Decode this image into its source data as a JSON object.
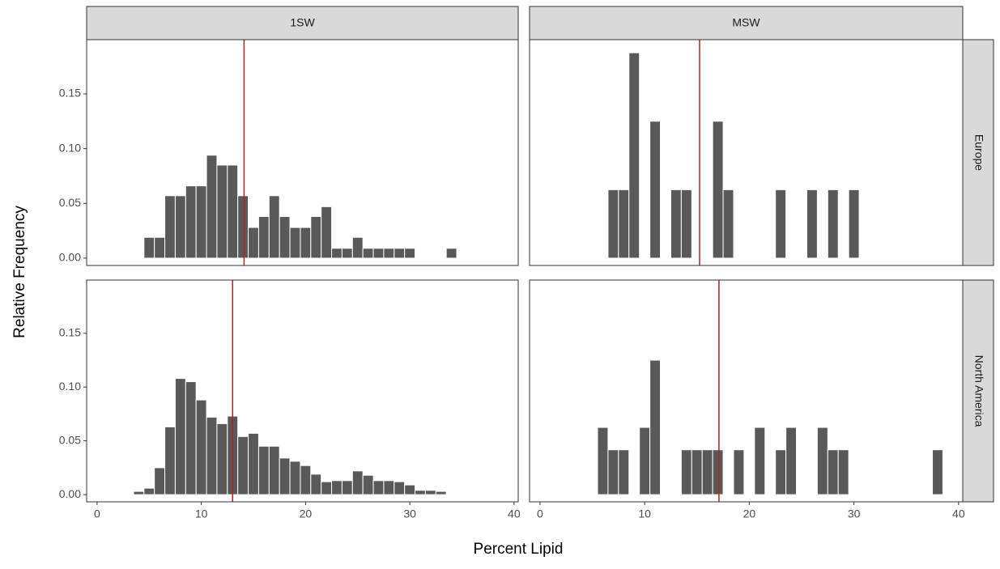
{
  "chart_data": {
    "type": "histogram",
    "x_label": "Percent Lipid",
    "y_label": "Relative Frequency",
    "columns": [
      "1SW",
      "MSW"
    ],
    "xlim": [
      -1,
      40.4
    ],
    "xticks": [
      0,
      10,
      20,
      30,
      40
    ],
    "ylim": [
      -0.0067,
      0.1995
    ],
    "yticks": [
      {
        "value": 0,
        "label": "0.00"
      },
      {
        "value": 0.05,
        "label": "0.05"
      },
      {
        "value": 0.1,
        "label": "0.10"
      },
      {
        "value": 0.15,
        "label": "0.15"
      }
    ],
    "bar_color": "#595959",
    "vline_color": "#b22222",
    "rows": [
      {
        "name": "Europe",
        "panels": [
          {
            "bins": [
              4.5,
              5.5,
              6.5,
              7.5,
              8.5,
              9.5,
              10.5,
              11.5,
              12.5,
              13.5,
              14.5,
              15.5,
              16.5,
              17.5,
              18.5,
              19.5,
              20.5,
              21.5,
              22.5,
              23.5,
              24.5,
              25.5,
              26.5,
              27.5,
              28.5,
              29.5,
              30.5,
              31.5,
              32.5,
              33.5,
              34.5
            ],
            "values": [
              0.019,
              0.019,
              0.057,
              0.057,
              0.066,
              0.066,
              0.094,
              0.085,
              0.085,
              0.057,
              0.028,
              0.038,
              0.057,
              0.038,
              0.028,
              0.028,
              0.038,
              0.047,
              0.009,
              0.009,
              0.019,
              0.009,
              0.009,
              0.009,
              0.009,
              0.009,
              0,
              0,
              0,
              0.009
            ],
            "vline": 14.1
          },
          {
            "bins": [
              6.5,
              7.5,
              8.5,
              9.5,
              10.5,
              11.5,
              12.5,
              13.5,
              14.5,
              15.5,
              16.5,
              17.5,
              18.5,
              19.5,
              20.5,
              21.5,
              22.5,
              23.5,
              24.5,
              25.5,
              26.5,
              27.5,
              28.5,
              29.5,
              30.5
            ],
            "values": [
              0.0625,
              0.0625,
              0.1875,
              0,
              0.125,
              0,
              0.0625,
              0.0625,
              0,
              0,
              0.125,
              0.0625,
              0,
              0,
              0,
              0,
              0.0625,
              0,
              0,
              0.0625,
              0,
              0.0625,
              0,
              0.0625
            ],
            "vline": 15.25
          }
        ]
      },
      {
        "name": "North America",
        "panels": [
          {
            "bins": [
              3.5,
              4.5,
              5.5,
              6.5,
              7.5,
              8.5,
              9.5,
              10.5,
              11.5,
              12.5,
              13.5,
              14.5,
              15.5,
              16.5,
              17.5,
              18.5,
              19.5,
              20.5,
              21.5,
              22.5,
              23.5,
              24.5,
              25.5,
              26.5,
              27.5,
              28.5,
              29.5,
              30.5,
              31.5,
              32.5,
              33.5
            ],
            "values": [
              0.003,
              0.006,
              0.025,
              0.063,
              0.108,
              0.105,
              0.088,
              0.072,
              0.066,
              0.073,
              0.054,
              0.057,
              0.045,
              0.045,
              0.034,
              0.031,
              0.027,
              0.019,
              0.012,
              0.013,
              0.013,
              0.022,
              0.018,
              0.013,
              0.013,
              0.012,
              0.009,
              0.004,
              0.004,
              0.003
            ],
            "vline": 13.0
          },
          {
            "bins": [
              5.5,
              6.5,
              7.5,
              8.5,
              9.5,
              10.5,
              11.5,
              12.5,
              13.5,
              14.5,
              15.5,
              16.5,
              17.5,
              18.5,
              19.5,
              20.5,
              21.5,
              22.5,
              23.5,
              24.5,
              25.5,
              26.5,
              27.5,
              28.5,
              29.5,
              30.5,
              31.5,
              32.5,
              33.5,
              34.5,
              35.5,
              36.5,
              37.5,
              38.5
            ],
            "values": [
              0.0625,
              0.0417,
              0.0417,
              0,
              0.0625,
              0.125,
              0,
              0,
              0.0417,
              0.0417,
              0.0417,
              0.0417,
              0,
              0.0417,
              0,
              0.0625,
              0,
              0.0417,
              0.0625,
              0,
              0,
              0.0625,
              0.0417,
              0.0417,
              0,
              0,
              0,
              0,
              0,
              0,
              0,
              0,
              0.0417
            ],
            "vline": 17.1
          }
        ]
      }
    ]
  }
}
